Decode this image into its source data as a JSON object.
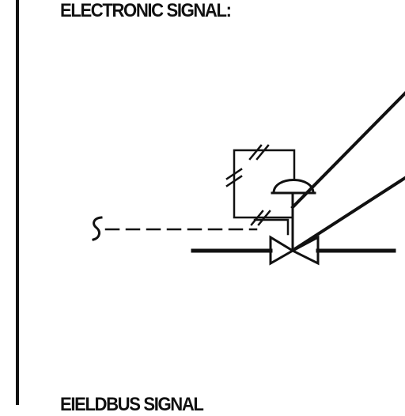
{
  "sheet": {
    "heading_top": "ELECTRONIC SIGNAL:",
    "heading_bottom": "EIELDBUS SIGNAL"
  },
  "symbol": {
    "signal_marker": "S",
    "line_color": "#111111"
  }
}
